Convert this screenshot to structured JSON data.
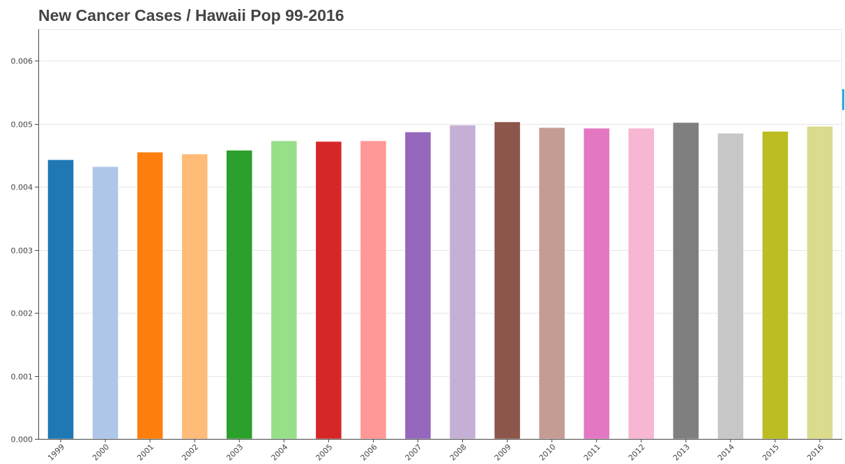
{
  "chart_data": {
    "type": "bar",
    "title": "New Cancer Cases / Hawaii Pop 99-2016",
    "xlabel": "",
    "ylabel": "",
    "categories": [
      "1999",
      "2000",
      "2001",
      "2002",
      "2003",
      "2004",
      "2005",
      "2006",
      "2007",
      "2008",
      "2009",
      "2010",
      "2011",
      "2012",
      "2013",
      "2014",
      "2015",
      "2016"
    ],
    "values": [
      0.00443,
      0.00432,
      0.00455,
      0.00452,
      0.00458,
      0.00473,
      0.00472,
      0.00473,
      0.00487,
      0.00498,
      0.00503,
      0.00494,
      0.00493,
      0.00493,
      0.00502,
      0.00485,
      0.00488,
      0.00496
    ],
    "colors": [
      "#1f77b4",
      "#aec7e8",
      "#ff7f0e",
      "#ffbb78",
      "#2ca02c",
      "#98df8a",
      "#d62728",
      "#ff9896",
      "#9467bd",
      "#c5b0d5",
      "#8c564b",
      "#c49c94",
      "#e377c2",
      "#f7b6d2",
      "#7f7f7f",
      "#c7c7c7",
      "#bcbd22",
      "#dbdb8d"
    ],
    "yticks": [
      "0.000",
      "0.001",
      "0.002",
      "0.003",
      "0.004",
      "0.005",
      "0.006"
    ],
    "ytick_values": [
      0,
      0.001,
      0.002,
      0.003,
      0.004,
      0.005,
      0.006
    ],
    "ylim": [
      0,
      0.0065
    ],
    "grid": true,
    "legend": "none"
  }
}
